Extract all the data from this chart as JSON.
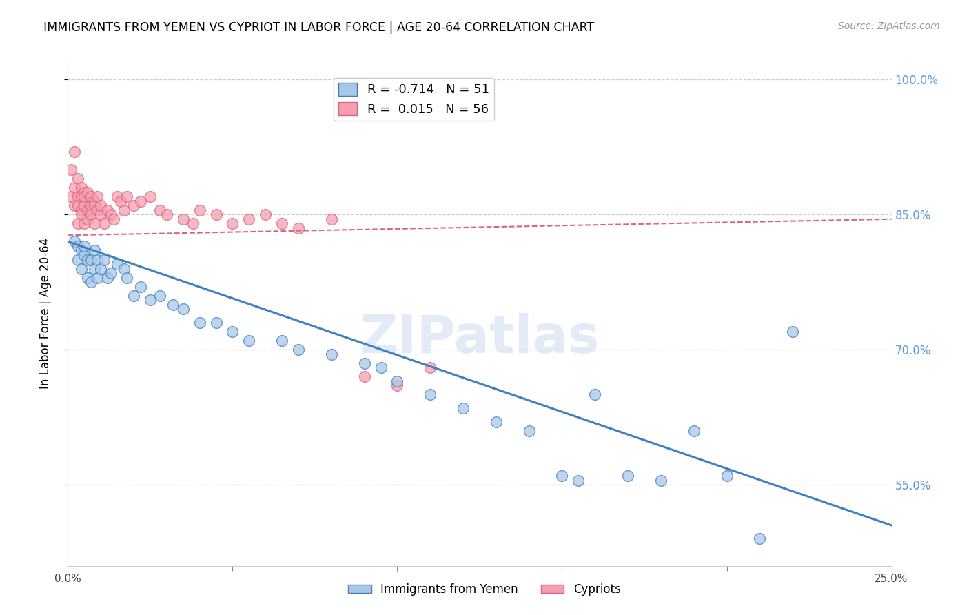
{
  "title": "IMMIGRANTS FROM YEMEN VS CYPRIOT IN LABOR FORCE | AGE 20-64 CORRELATION CHART",
  "source": "Source: ZipAtlas.com",
  "ylabel": "In Labor Force | Age 20-64",
  "xlim": [
    0.0,
    0.25
  ],
  "ylim": [
    0.46,
    1.02
  ],
  "right_yticks": [
    1.0,
    0.85,
    0.7,
    0.55
  ],
  "right_yticklabels": [
    "100.0%",
    "85.0%",
    "70.0%",
    "55.0%"
  ],
  "xticks": [
    0.0,
    0.05,
    0.1,
    0.15,
    0.2,
    0.25
  ],
  "xticklabels": [
    "0.0%",
    "",
    "",
    "",
    "",
    "25.0%"
  ],
  "legend_R1": "-0.714",
  "legend_N1": "51",
  "legend_R2": "0.015",
  "legend_N2": "56",
  "blue_color": "#A8C8E8",
  "pink_color": "#F4A0B0",
  "blue_line_color": "#4080C0",
  "pink_line_color": "#E06080",
  "watermark": "ZIPatlas",
  "yemen_x": [
    0.002,
    0.003,
    0.003,
    0.004,
    0.004,
    0.005,
    0.005,
    0.006,
    0.006,
    0.007,
    0.007,
    0.008,
    0.008,
    0.009,
    0.009,
    0.01,
    0.011,
    0.012,
    0.013,
    0.015,
    0.017,
    0.018,
    0.02,
    0.022,
    0.025,
    0.028,
    0.032,
    0.035,
    0.04,
    0.045,
    0.05,
    0.055,
    0.065,
    0.07,
    0.08,
    0.09,
    0.095,
    0.1,
    0.11,
    0.12,
    0.13,
    0.14,
    0.15,
    0.155,
    0.16,
    0.17,
    0.18,
    0.19,
    0.2,
    0.21,
    0.22
  ],
  "yemen_y": [
    0.82,
    0.815,
    0.8,
    0.81,
    0.79,
    0.805,
    0.815,
    0.8,
    0.78,
    0.8,
    0.775,
    0.81,
    0.79,
    0.8,
    0.78,
    0.79,
    0.8,
    0.78,
    0.785,
    0.795,
    0.79,
    0.78,
    0.76,
    0.77,
    0.755,
    0.76,
    0.75,
    0.745,
    0.73,
    0.73,
    0.72,
    0.71,
    0.71,
    0.7,
    0.695,
    0.685,
    0.68,
    0.665,
    0.65,
    0.635,
    0.62,
    0.61,
    0.56,
    0.555,
    0.65,
    0.56,
    0.555,
    0.61,
    0.56,
    0.49,
    0.72
  ],
  "cypriot_x": [
    0.001,
    0.001,
    0.002,
    0.002,
    0.002,
    0.003,
    0.003,
    0.003,
    0.003,
    0.004,
    0.004,
    0.004,
    0.004,
    0.005,
    0.005,
    0.005,
    0.005,
    0.006,
    0.006,
    0.006,
    0.007,
    0.007,
    0.007,
    0.008,
    0.008,
    0.008,
    0.009,
    0.009,
    0.01,
    0.01,
    0.011,
    0.012,
    0.013,
    0.014,
    0.015,
    0.016,
    0.017,
    0.018,
    0.02,
    0.022,
    0.025,
    0.028,
    0.03,
    0.035,
    0.038,
    0.04,
    0.045,
    0.05,
    0.055,
    0.06,
    0.065,
    0.07,
    0.08,
    0.09,
    0.1,
    0.11
  ],
  "cypriot_y": [
    0.87,
    0.9,
    0.88,
    0.86,
    0.92,
    0.87,
    0.89,
    0.86,
    0.84,
    0.87,
    0.855,
    0.88,
    0.85,
    0.875,
    0.86,
    0.84,
    0.87,
    0.855,
    0.875,
    0.845,
    0.86,
    0.87,
    0.85,
    0.865,
    0.84,
    0.86,
    0.855,
    0.87,
    0.85,
    0.86,
    0.84,
    0.855,
    0.85,
    0.845,
    0.87,
    0.865,
    0.855,
    0.87,
    0.86,
    0.865,
    0.87,
    0.855,
    0.85,
    0.845,
    0.84,
    0.855,
    0.85,
    0.84,
    0.845,
    0.85,
    0.84,
    0.835,
    0.845,
    0.67,
    0.66,
    0.68
  ],
  "blue_trend_x": [
    0.0,
    0.25
  ],
  "blue_trend_y": [
    0.82,
    0.505
  ],
  "pink_trend_x": [
    0.0,
    0.25
  ],
  "pink_trend_y": [
    0.827,
    0.845
  ]
}
